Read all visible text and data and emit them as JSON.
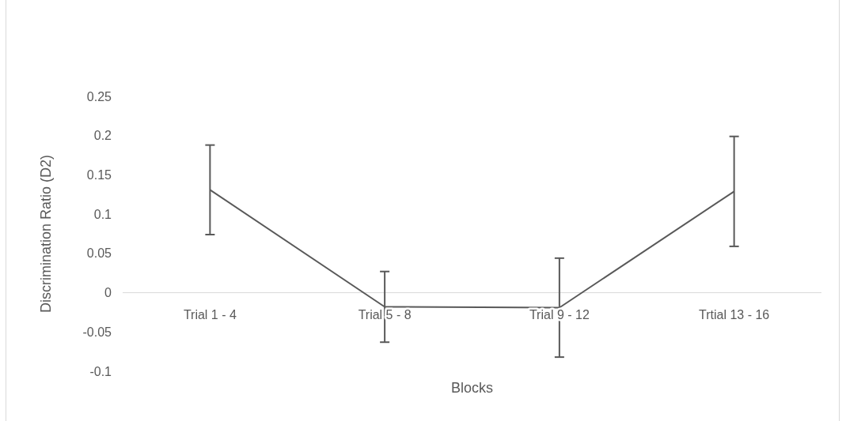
{
  "chart_data": {
    "type": "line",
    "xlabel": "Blocks",
    "ylabel": "Discrimination Ratio (D2)",
    "categories": [
      "Trial 1 - 4",
      "Trial 5 - 8",
      "Trial 9 - 12",
      "Trtial 13 - 16"
    ],
    "series": [
      {
        "color": "#595959",
        "values": [
          0.131,
          -0.018,
          -0.019,
          0.129
        ],
        "errors": [
          0.057,
          0.045,
          0.063,
          0.07
        ]
      }
    ],
    "ylim": [
      -0.1,
      0.25
    ],
    "yticks": [
      -0.1,
      -0.05,
      0,
      0.05,
      0.1,
      0.15,
      0.2,
      0.25
    ],
    "grid": false,
    "marker": "none",
    "line_style": "solid"
  }
}
